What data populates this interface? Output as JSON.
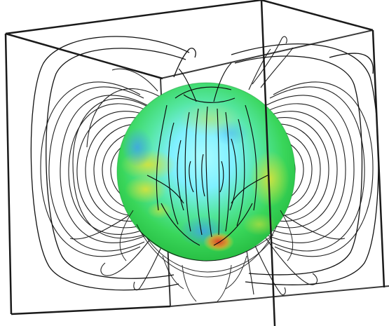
{
  "scene": {
    "subject": "",
    "colors": {
      "background": "#ffffff",
      "box_edges": "#1a1a1a",
      "field_lines": "#111111",
      "sphere_cyan": "#7ff0ff",
      "sphere_green": "#39d65a",
      "sphere_yellow": "#d9e23a",
      "sphere_red": "#e0402a"
    }
  }
}
